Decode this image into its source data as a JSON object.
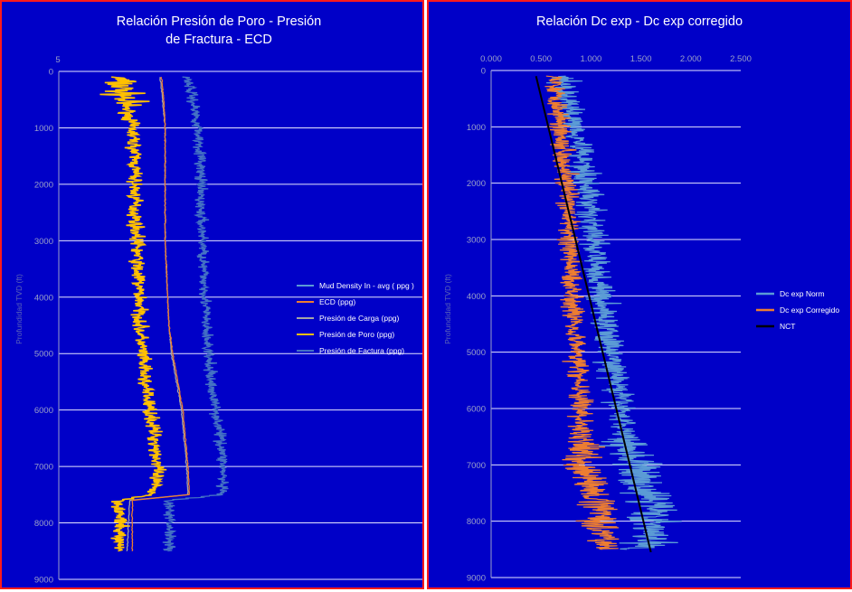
{
  "left_chart": {
    "title_line1": "Relación Presión de Poro - Presión",
    "title_line2": "de Fractura - ECD",
    "ylabel": "Profundidad TVD (ft)",
    "top_tick": "5"
  },
  "right_chart": {
    "title": "Relación Dc exp - Dc exp corregido",
    "ylabel": "Profundidad TVD (ft)"
  },
  "chart_data": [
    {
      "type": "line",
      "title": "Relación Presión de Poro - Presión de Fractura - ECD",
      "ylabel": "Profundidad TVD (ft)",
      "ylim": [
        0,
        9000
      ],
      "y_inverted": true,
      "y_ticks": [
        0,
        1000,
        2000,
        3000,
        4000,
        5000,
        6000,
        7000,
        8000,
        9000
      ],
      "x_ticks": [
        "5"
      ],
      "grid": "horizontal",
      "legend_position": "right",
      "depth": [
        100,
        500,
        1000,
        1500,
        2000,
        2500,
        3000,
        3500,
        4000,
        4500,
        5000,
        5500,
        6000,
        6500,
        7000,
        7500,
        7600,
        8000,
        8500
      ],
      "series": [
        {
          "name": "Mud Density In - avg ( ppg )",
          "color": "#5B9BD5",
          "values": [
            null,
            null,
            null,
            null,
            null,
            null,
            null,
            null,
            null,
            null,
            null,
            null,
            null,
            null,
            null,
            null,
            null,
            null,
            null
          ]
        },
        {
          "name": "ECD (ppg)",
          "color": "#ED7D31",
          "values": [
            9.05,
            9.15,
            9.2,
            9.2,
            9.2,
            9.2,
            9.2,
            9.25,
            9.3,
            9.35,
            9.5,
            9.7,
            9.9,
            10.0,
            10.1,
            10.15,
            7.9,
            7.9,
            7.9
          ]
        },
        {
          "name": "Presión de Carga (ppg)",
          "color": "#A5A5A5",
          "values": [
            9.0,
            9.1,
            9.2,
            9.2,
            9.2,
            9.2,
            9.2,
            9.25,
            9.3,
            9.35,
            9.45,
            9.65,
            9.85,
            9.95,
            10.05,
            10.1,
            7.8,
            7.75,
            7.7
          ]
        },
        {
          "name": "Presión de Poro (ppg)",
          "color": "#FFC000",
          "values": [
            7.3,
            7.6,
            7.9,
            8.0,
            8.0,
            8.0,
            8.1,
            8.1,
            8.2,
            8.2,
            8.3,
            8.4,
            8.6,
            8.8,
            8.9,
            8.7,
            7.4,
            7.4,
            7.4
          ]
        },
        {
          "name": "Presión de Factura (ppg)",
          "color": "#4472C4",
          "values": [
            10.1,
            10.3,
            10.5,
            10.6,
            10.6,
            10.6,
            10.7,
            10.7,
            10.8,
            10.8,
            10.9,
            11.0,
            11.2,
            11.4,
            11.5,
            11.4,
            9.3,
            9.4,
            9.4
          ]
        }
      ]
    },
    {
      "type": "line",
      "title": "Relación Dc exp - Dc exp corregido",
      "ylabel": "Profundidad TVD (ft)",
      "ylim": [
        0,
        9000
      ],
      "y_inverted": true,
      "xlim": [
        0,
        2.5
      ],
      "x_ticks": [
        "0.000",
        "0.500",
        "1.000",
        "1.500",
        "2.000",
        "2.500"
      ],
      "y_ticks": [
        0,
        1000,
        2000,
        3000,
        4000,
        5000,
        6000,
        7000,
        8000,
        9000
      ],
      "grid": "horizontal",
      "legend_position": "right",
      "depth": [
        100,
        500,
        1000,
        1500,
        2000,
        2500,
        3000,
        3500,
        4000,
        4500,
        5000,
        5500,
        6000,
        6500,
        7000,
        7500,
        7800,
        8000,
        8500
      ],
      "series": [
        {
          "name": "Dc exp Norm",
          "color": "#5B9BD5",
          "values": [
            0.72,
            0.75,
            0.85,
            0.92,
            0.95,
            1.0,
            1.02,
            1.05,
            1.1,
            1.15,
            1.2,
            1.25,
            1.3,
            1.35,
            1.45,
            1.55,
            1.7,
            1.6,
            1.55
          ]
        },
        {
          "name": "Dc exp Corregido",
          "color": "#ED7D31",
          "values": [
            0.65,
            0.66,
            0.7,
            0.73,
            0.75,
            0.77,
            0.78,
            0.8,
            0.82,
            0.84,
            0.86,
            0.88,
            0.9,
            0.9,
            0.92,
            1.0,
            1.15,
            1.1,
            1.15
          ]
        },
        {
          "name": "NCT",
          "color": "#000000",
          "x": [
            0.45,
            1.6
          ],
          "y": [
            100,
            8550
          ]
        }
      ]
    }
  ]
}
